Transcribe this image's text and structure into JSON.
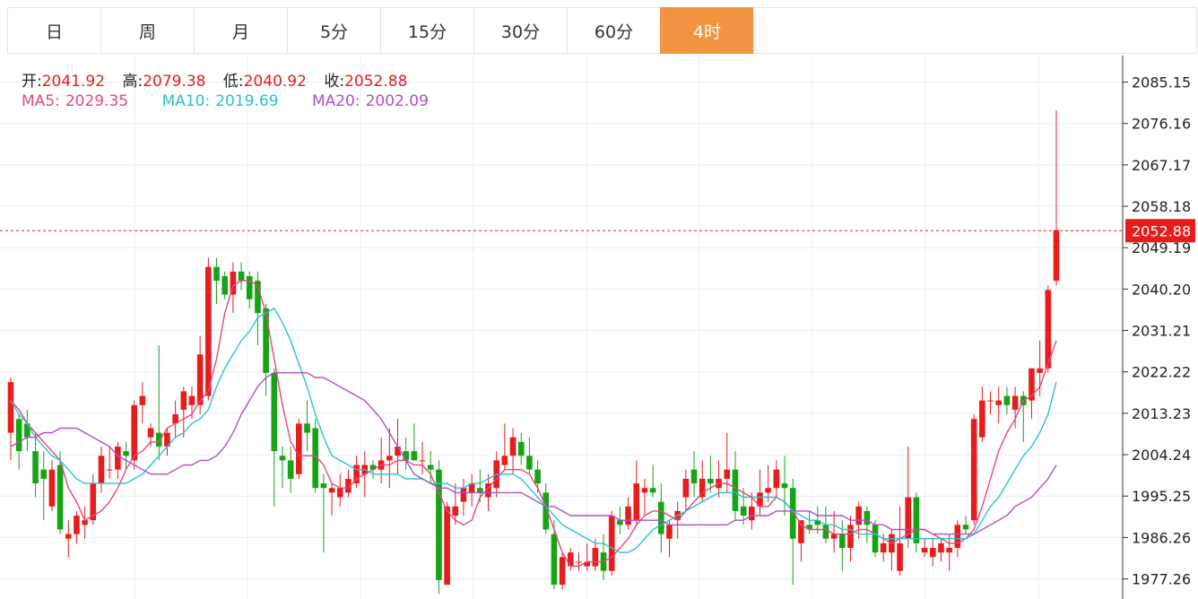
{
  "tabs": [
    {
      "label": "日"
    },
    {
      "label": "周"
    },
    {
      "label": "月"
    },
    {
      "label": "5分"
    },
    {
      "label": "15分"
    },
    {
      "label": "30分"
    },
    {
      "label": "60分"
    },
    {
      "label": "4时"
    }
  ],
  "active_tab": "4时",
  "ohlc_info": {
    "open_label": "开:",
    "open": "2041.92",
    "high_label": "高:",
    "high": "2079.38",
    "low_label": "低:",
    "low": "2040.92",
    "close_label": "收:",
    "close": "2052.88"
  },
  "ma_info": {
    "ma5_label": "MA5:",
    "ma5": "2029.35",
    "ma10_label": "MA10:",
    "ma10": "2019.69",
    "ma20_label": "MA20:",
    "ma20": "2002.09"
  },
  "colors": {
    "up": "#e81c1c",
    "down": "#16a316",
    "ma5": "#e8467a",
    "ma10": "#29c2ce",
    "ma20": "#b04fc8",
    "active_tab": "#f29441",
    "price_line": "#e81c1c",
    "grid": "#e8eef3"
  },
  "chart_data": {
    "type": "candlestick",
    "y_ticks": [
      "2085.15",
      "2076.16",
      "2067.17",
      "2058.18",
      "2049.19",
      "2040.20",
      "2031.21",
      "2022.22",
      "2013.23",
      "2004.24",
      "1995.25",
      "1986.26",
      "1977.26"
    ],
    "ylim": [
      1972.9,
      2090.9
    ],
    "last_price": "2052.88",
    "grid": true,
    "candles": [
      [
        2009,
        2021,
        2003,
        2020
      ],
      [
        2012,
        2013,
        2001,
        2005
      ],
      [
        2011,
        2014,
        2005,
        2008
      ],
      [
        2005,
        2009,
        1995,
        1998
      ],
      [
        2001,
        2005,
        1990,
        1999
      ],
      [
        1993,
        2003,
        1992,
        2001
      ],
      [
        2002,
        2005,
        1987,
        1988
      ],
      [
        1986,
        1990,
        1982,
        1987
      ],
      [
        1987,
        1992,
        1985,
        1991
      ],
      [
        1989,
        1993,
        1986,
        1990
      ],
      [
        1990,
        2000,
        1989,
        1998
      ],
      [
        1998,
        2006,
        1996,
        2004
      ],
      [
        2001,
        2006,
        1999,
        2001
      ],
      [
        2001,
        2007,
        1999,
        2006
      ],
      [
        2005,
        2007,
        2001,
        2004
      ],
      [
        2003,
        2016,
        2001,
        2015
      ],
      [
        2015,
        2020,
        2011,
        2017
      ],
      [
        2008,
        2011,
        2006,
        2010
      ],
      [
        2009,
        2028,
        2003,
        2006
      ],
      [
        2006,
        2010,
        2004,
        2009
      ],
      [
        2011,
        2016,
        2008,
        2013
      ],
      [
        2014,
        2019,
        2008,
        2018
      ],
      [
        2015,
        2019,
        2012,
        2017
      ],
      [
        2015,
        2030,
        2013,
        2026
      ],
      [
        2017,
        2047,
        2016,
        2045
      ],
      [
        2045,
        2047,
        2037,
        2042
      ],
      [
        2043,
        2044,
        2038,
        2039
      ],
      [
        2039,
        2046,
        2035,
        2044
      ],
      [
        2044,
        2046,
        2040,
        2042
      ],
      [
        2043,
        2044,
        2036,
        2038
      ],
      [
        2042,
        2044,
        2028,
        2035
      ],
      [
        2036,
        2037,
        2017,
        2022
      ],
      [
        2022,
        2023,
        1993,
        2005
      ],
      [
        2004,
        2006,
        1997,
        2003
      ],
      [
        2003,
        2006,
        1996,
        1999
      ],
      [
        2000,
        2012,
        1999,
        2011
      ],
      [
        2011,
        2016,
        2005,
        2009
      ],
      [
        2010,
        2012,
        1996,
        1997
      ],
      [
        1998,
        2000,
        1983,
        1997
      ],
      [
        1996,
        1998,
        1991,
        1997
      ],
      [
        1995,
        2000,
        1993,
        1997
      ],
      [
        1996,
        2001,
        1995,
        1999
      ],
      [
        1998,
        2004,
        1997,
        2002
      ],
      [
        2000,
        2005,
        1995,
        2002
      ],
      [
        2002,
        2003,
        1999,
        2001
      ],
      [
        2001,
        2008,
        1998,
        2003
      ],
      [
        2003,
        2010,
        1997,
        2004
      ],
      [
        2004,
        2012,
        2000,
        2006
      ],
      [
        2005,
        2008,
        2001,
        2003
      ],
      [
        2005,
        2011,
        2003,
        2003
      ],
      [
        2003,
        2007,
        2000,
        2003
      ],
      [
        2002,
        2005,
        1998,
        2001
      ],
      [
        2001,
        2003,
        1974,
        1977
      ],
      [
        1976,
        1994,
        1976,
        1993
      ],
      [
        1991,
        1998,
        1989,
        1993
      ],
      [
        1994,
        1999,
        1991,
        1997
      ],
      [
        1996,
        2000,
        1993,
        1998
      ],
      [
        1997,
        2001,
        1994,
        1996
      ],
      [
        1995,
        2000,
        1992,
        1998
      ],
      [
        1997,
        2005,
        1995,
        2003
      ],
      [
        2002,
        2011,
        2001,
        2004
      ],
      [
        2004,
        2010,
        2000,
        2008
      ],
      [
        2007,
        2009,
        2002,
        2004
      ],
      [
        2004,
        2008,
        2000,
        2001
      ],
      [
        2001,
        2003,
        1996,
        1998
      ],
      [
        1996,
        1998,
        1987,
        1988
      ],
      [
        1987,
        1990,
        1975,
        1976
      ],
      [
        1976,
        1983,
        1975,
        1982
      ],
      [
        1980,
        1984,
        1979,
        1983
      ],
      [
        1981,
        1983,
        1979,
        1981
      ],
      [
        1980,
        1985,
        1979,
        1981
      ],
      [
        1980,
        1986,
        1979,
        1984
      ],
      [
        1983,
        1987,
        1977,
        1979
      ],
      [
        1979,
        1992,
        1978,
        1991
      ],
      [
        1990,
        1993,
        1987,
        1989
      ],
      [
        1989,
        1995,
        1988,
        1993
      ],
      [
        1990,
        2003,
        1989,
        1998
      ],
      [
        1996,
        1999,
        1991,
        1997
      ],
      [
        1997,
        2002,
        1995,
        1996
      ],
      [
        1994,
        1998,
        1983,
        1987
      ],
      [
        1986,
        1990,
        1982,
        1989
      ],
      [
        1990,
        1994,
        1986,
        1992
      ],
      [
        1995,
        2001,
        1992,
        1999
      ],
      [
        2001,
        2005,
        1995,
        1998
      ],
      [
        1995,
        2003,
        1994,
        1999
      ],
      [
        1999,
        2004,
        1996,
        1998
      ],
      [
        1997,
        2003,
        1995,
        1999
      ],
      [
        1999,
        2009,
        1996,
        2001
      ],
      [
        2001,
        2005,
        1990,
        1992
      ],
      [
        1993,
        1997,
        1989,
        1991
      ],
      [
        1990,
        1996,
        1988,
        1993
      ],
      [
        1993,
        2001,
        1991,
        1996
      ],
      [
        1996,
        2002,
        1994,
        1997
      ],
      [
        1997,
        2003,
        1995,
        2001
      ],
      [
        1998,
        2004,
        1991,
        1997
      ],
      [
        1997,
        1999,
        1976,
        1986
      ],
      [
        1985,
        1989,
        1981,
        1990
      ],
      [
        1989,
        1992,
        1987,
        1988
      ],
      [
        1990,
        1993,
        1987,
        1989
      ],
      [
        1989,
        1993,
        1985,
        1986
      ],
      [
        1986,
        1992,
        1983,
        1987
      ],
      [
        1987,
        1990,
        1979,
        1984
      ],
      [
        1984,
        1991,
        1981,
        1989
      ],
      [
        1989,
        1994,
        1986,
        1993
      ],
      [
        1992,
        1993,
        1985,
        1989
      ],
      [
        1989,
        1990,
        1982,
        1983
      ],
      [
        1983,
        1987,
        1981,
        1985
      ],
      [
        1983,
        1988,
        1979,
        1987
      ],
      [
        1979,
        1993,
        1978,
        1985
      ],
      [
        1986,
        2006,
        1984,
        1995
      ],
      [
        1995,
        1996,
        1983,
        1985
      ],
      [
        1983,
        1986,
        1982,
        1984
      ],
      [
        1982,
        1986,
        1980,
        1984
      ],
      [
        1983,
        1986,
        1981,
        1985
      ],
      [
        1983,
        1987,
        1979,
        1984
      ],
      [
        1984,
        1990,
        1982,
        1989
      ],
      [
        1989,
        1991,
        1987,
        1988
      ],
      [
        1990,
        2013,
        1989,
        2012
      ],
      [
        2008,
        2019,
        2007,
        2016
      ],
      [
        2016,
        2018,
        2013,
        2016
      ],
      [
        2015,
        2019,
        2011,
        2016
      ],
      [
        2017,
        2019,
        2013,
        2015
      ],
      [
        2014,
        2019,
        2010,
        2017
      ],
      [
        2017,
        2018,
        2007,
        2015
      ],
      [
        2016,
        2023,
        2012,
        2023
      ],
      [
        2022,
        2029,
        2017,
        2023
      ],
      [
        2023,
        2041,
        2022,
        2040
      ],
      [
        2042,
        2079,
        2041,
        2053
      ]
    ],
    "series": [
      {
        "name": "MA5",
        "values": [
          2016,
          2014,
          2011,
          2009,
          2007,
          2005,
          2003,
          1997,
          1994,
          1990,
          1991,
          1992,
          1994,
          1997,
          2001,
          2004,
          2005,
          2007,
          2007,
          2010,
          2011,
          2012,
          2013,
          2016,
          2018,
          2025,
          2035,
          2041,
          2042,
          2042,
          2041,
          2035,
          2025,
          2015,
          2007,
          2004,
          2004,
          2004,
          2002,
          1998,
          1997,
          1997,
          1999,
          2000,
          2001,
          2002,
          2002,
          2003,
          2003,
          2002,
          2002,
          2000,
          1996,
          1992,
          1990,
          1989,
          1990,
          1995,
          1997,
          1999,
          2001,
          2001,
          2001,
          2000,
          1997,
          1993,
          1988,
          1983,
          1980,
          1980,
          1981,
          1981,
          1981,
          1982,
          1984,
          1986,
          1989,
          1991,
          1992,
          1992,
          1991,
          1990,
          1992,
          1994,
          1996,
          1997,
          1998,
          1998,
          1997,
          1996,
          1995,
          1993,
          1993,
          1995,
          1994,
          1992,
          1989,
          1988,
          1988,
          1988,
          1987,
          1987,
          1987,
          1988,
          1988,
          1987,
          1986,
          1985,
          1986,
          1987,
          1988,
          1988,
          1987,
          1986,
          1985,
          1985,
          1986,
          1988,
          1993,
          1999,
          2005,
          2009,
          2012,
          2016,
          2017,
          2019,
          2024,
          2029
        ]
      },
      {
        "name": "MA10",
        "values": [
          2016,
          2013,
          2011,
          2008,
          2006,
          2004,
          2003,
          2001,
          1999,
          1998,
          1998,
          1998,
          1998,
          1998,
          1998,
          1999,
          2000,
          2002,
          2004,
          2006,
          2008,
          2009,
          2011,
          2012,
          2014,
          2019,
          2023,
          2026,
          2029,
          2031,
          2034,
          2035,
          2036,
          2033,
          2029,
          2024,
          2019,
          2013,
          2008,
          2004,
          2003,
          2002,
          2001,
          2001,
          2000,
          2000,
          2000,
          2000,
          1999,
          1999,
          1999,
          1998,
          1998,
          1998,
          1997,
          1997,
          1998,
          1998,
          1999,
          2000,
          2000,
          2000,
          1999,
          1997,
          1995,
          1993,
          1991,
          1989,
          1988,
          1987,
          1986,
          1985,
          1985,
          1984,
          1983,
          1983,
          1984,
          1986,
          1988,
          1989,
          1990,
          1991,
          1992,
          1993,
          1994,
          1995,
          1996,
          1996,
          1996,
          1995,
          1995,
          1995,
          1995,
          1995,
          1994,
          1992,
          1991,
          1990,
          1990,
          1989,
          1989,
          1988,
          1988,
          1987,
          1987,
          1987,
          1986,
          1986,
          1986,
          1986,
          1986,
          1986,
          1986,
          1986,
          1986,
          1986,
          1986,
          1987,
          1990,
          1993,
          1995,
          1998,
          2001,
          2004,
          2006,
          2009,
          2013,
          2020
        ]
      },
      {
        "name": "MA20",
        "values": [
          2006,
          2007,
          2008,
          2008,
          2009,
          2009,
          2010,
          2010,
          2010,
          2009,
          2008,
          2007,
          2006,
          2004,
          2003,
          2002,
          2001,
          2000,
          2000,
          2000,
          2001,
          2002,
          2002,
          2003,
          2003,
          2004,
          2006,
          2009,
          2013,
          2016,
          2019,
          2021,
          2022,
          2022,
          2022,
          2022,
          2022,
          2021,
          2021,
          2020,
          2019,
          2018,
          2017,
          2016,
          2014,
          2012,
          2009,
          2006,
          2003,
          2000,
          1999,
          1998,
          1997,
          1997,
          1996,
          1996,
          1996,
          1996,
          1996,
          1996,
          1996,
          1996,
          1996,
          1995,
          1994,
          1993,
          1993,
          1992,
          1991,
          1991,
          1991,
          1991,
          1991,
          1991,
          1990,
          1990,
          1990,
          1990,
          1990,
          1990,
          1989,
          1989,
          1989,
          1989,
          1989,
          1989,
          1989,
          1989,
          1990,
          1990,
          1991,
          1991,
          1991,
          1992,
          1992,
          1992,
          1992,
          1992,
          1991,
          1991,
          1991,
          1991,
          1990,
          1990,
          1990,
          1989,
          1989,
          1988,
          1988,
          1988,
          1988,
          1988,
          1987,
          1987,
          1987,
          1987,
          1987,
          1987,
          1988,
          1989,
          1990,
          1991,
          1993,
          1994,
          1995,
          1997,
          1999,
          2002
        ]
      }
    ]
  }
}
